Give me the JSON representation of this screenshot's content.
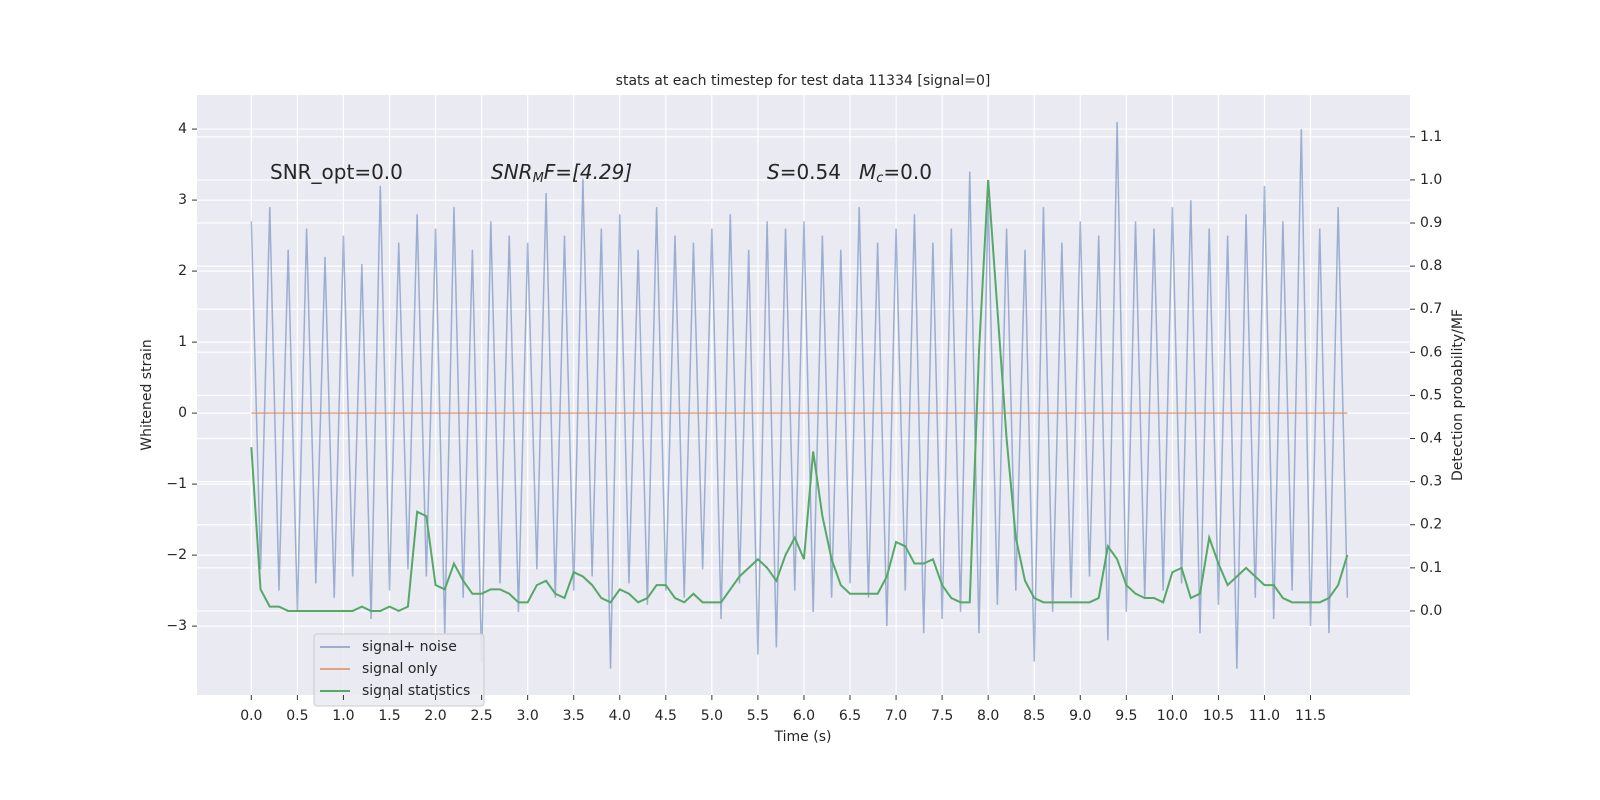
{
  "chart_data": {
    "type": "line",
    "title": "stats at each timestep for test data 11334 [signal=0]",
    "xlabel": "Time (s)",
    "ylabel": "Whitened strain",
    "y2label": "Detection probability/MF",
    "annotations": [
      [
        "SNR_opt=0.0"
      ],
      [
        "SNR",
        "M",
        "F=[4.29]"
      ],
      [
        "S",
        "=0.54",
        "M",
        "c",
        "=0.0"
      ]
    ],
    "x": [
      0,
      0.1,
      0.2,
      0.3,
      0.4,
      0.5,
      0.6,
      0.7,
      0.8,
      0.9,
      1.0,
      1.1,
      1.2,
      1.3,
      1.4,
      1.5,
      1.6,
      1.7,
      1.8,
      1.9,
      2.0,
      2.1,
      2.2,
      2.3,
      2.4,
      2.5,
      2.6,
      2.7,
      2.8,
      2.9,
      3.0,
      3.1,
      3.2,
      3.3,
      3.4,
      3.5,
      3.6,
      3.7,
      3.8,
      3.9,
      4.0,
      4.1,
      4.2,
      4.3,
      4.4,
      4.5,
      4.6,
      4.7,
      4.8,
      4.9,
      5.0,
      5.1,
      5.2,
      5.3,
      5.4,
      5.5,
      5.6,
      5.7,
      5.8,
      5.9,
      6.0,
      6.1,
      6.2,
      6.3,
      6.4,
      6.5,
      6.6,
      6.7,
      6.8,
      6.9,
      7.0,
      7.1,
      7.2,
      7.3,
      7.4,
      7.5,
      7.6,
      7.7,
      7.8,
      7.9,
      8.0,
      8.1,
      8.2,
      8.3,
      8.4,
      8.5,
      8.6,
      8.7,
      8.8,
      8.9,
      9.0,
      9.1,
      9.2,
      9.3,
      9.4,
      9.5,
      9.6,
      9.7,
      9.8,
      9.9,
      10.0,
      10.1,
      10.2,
      10.3,
      10.4,
      10.5,
      10.6,
      10.7,
      10.8,
      10.9,
      11.0,
      11.1,
      11.2,
      11.3,
      11.4,
      11.5,
      11.6,
      11.7,
      11.8,
      11.9
    ],
    "series": [
      {
        "name": "signal+ noise",
        "color": "#4c72b0",
        "opacity": 0.5,
        "values": [
          2.7,
          -2.2,
          2.9,
          -2.5,
          2.3,
          -2.8,
          2.6,
          -2.4,
          2.2,
          -2.6,
          2.5,
          -2.3,
          2.1,
          -2.9,
          3.2,
          -2.5,
          2.4,
          -2.2,
          2.8,
          -2.3,
          2.6,
          -3.1,
          2.9,
          -2.6,
          2.3,
          -3.5,
          2.7,
          -2.4,
          2.5,
          -2.8,
          2.4,
          -2.2,
          3.1,
          -2.6,
          2.5,
          -2.5,
          3.3,
          -2.3,
          2.6,
          -3.6,
          2.8,
          -2.4,
          2.3,
          -2.7,
          2.9,
          -2.5,
          2.5,
          -2.6,
          2.4,
          -2.2,
          2.6,
          -2.9,
          2.8,
          -2.4,
          2.3,
          -3.4,
          2.7,
          -3.3,
          2.6,
          -2.5,
          2.7,
          -2.8,
          2.5,
          -2.6,
          2.3,
          -2.4,
          2.9,
          -2.6,
          2.4,
          -3.0,
          2.6,
          -2.5,
          2.8,
          -3.1,
          2.4,
          -2.9,
          2.6,
          -2.8,
          3.4,
          -3.1,
          3.0,
          -2.7,
          2.6,
          -2.5,
          2.3,
          -3.5,
          2.9,
          -2.8,
          2.4,
          -2.6,
          2.7,
          -2.3,
          2.5,
          -3.2,
          4.1,
          -2.8,
          2.7,
          -2.6,
          2.6,
          -2.5,
          2.9,
          -2.4,
          3.0,
          -3.1,
          2.6,
          -2.7,
          2.5,
          -3.6,
          2.8,
          -2.6,
          3.2,
          -2.9,
          2.7,
          -2.5,
          4.0,
          -3.0,
          2.6,
          -3.1,
          2.9,
          -2.6
        ]
      },
      {
        "name": "signal only",
        "color": "#dd8452",
        "opacity": 0.7,
        "values": [
          0,
          0,
          0,
          0,
          0,
          0,
          0,
          0,
          0,
          0,
          0,
          0,
          0,
          0,
          0,
          0,
          0,
          0,
          0,
          0,
          0,
          0,
          0,
          0,
          0,
          0,
          0,
          0,
          0,
          0,
          0,
          0,
          0,
          0,
          0,
          0,
          0,
          0,
          0,
          0,
          0,
          0,
          0,
          0,
          0,
          0,
          0,
          0,
          0,
          0,
          0,
          0,
          0,
          0,
          0,
          0,
          0,
          0,
          0,
          0,
          0,
          0,
          0,
          0,
          0,
          0,
          0,
          0,
          0,
          0,
          0,
          0,
          0,
          0,
          0,
          0,
          0,
          0,
          0,
          0,
          0,
          0,
          0,
          0,
          0,
          0,
          0,
          0,
          0,
          0,
          0,
          0,
          0,
          0,
          0,
          0,
          0,
          0,
          0,
          0,
          0,
          0,
          0,
          0,
          0,
          0,
          0,
          0,
          0,
          0,
          0,
          0,
          0,
          0,
          0,
          0,
          0,
          0,
          0,
          0
        ]
      },
      {
        "name": "signal statistics",
        "color": "#55a868",
        "opacity": 1,
        "axis": "y2",
        "values": [
          0.38,
          0.05,
          0.01,
          0.01,
          0.0,
          0.0,
          0.0,
          0.0,
          0.0,
          0.0,
          0.0,
          0.0,
          0.01,
          0.0,
          0.0,
          0.01,
          0.0,
          0.01,
          0.23,
          0.22,
          0.06,
          0.05,
          0.11,
          0.07,
          0.04,
          0.04,
          0.05,
          0.05,
          0.04,
          0.02,
          0.02,
          0.06,
          0.07,
          0.04,
          0.03,
          0.09,
          0.08,
          0.06,
          0.03,
          0.02,
          0.05,
          0.04,
          0.02,
          0.03,
          0.06,
          0.06,
          0.03,
          0.02,
          0.04,
          0.02,
          0.02,
          0.02,
          0.05,
          0.08,
          0.1,
          0.12,
          0.1,
          0.07,
          0.13,
          0.17,
          0.12,
          0.37,
          0.22,
          0.12,
          0.06,
          0.04,
          0.04,
          0.04,
          0.04,
          0.08,
          0.16,
          0.15,
          0.11,
          0.11,
          0.12,
          0.06,
          0.03,
          0.02,
          0.02,
          0.6,
          1.0,
          0.7,
          0.4,
          0.17,
          0.07,
          0.03,
          0.02,
          0.02,
          0.02,
          0.02,
          0.02,
          0.02,
          0.03,
          0.15,
          0.12,
          0.06,
          0.04,
          0.03,
          0.03,
          0.02,
          0.09,
          0.1,
          0.03,
          0.04,
          0.17,
          0.11,
          0.06,
          0.08,
          0.1,
          0.08,
          0.06,
          0.06,
          0.03,
          0.02,
          0.02,
          0.02,
          0.02,
          0.03,
          0.06,
          0.13
        ]
      }
    ],
    "xlim": [
      -0.59,
      12.58
    ],
    "ylim": [
      -3.97,
      4.48
    ],
    "y2lim": [
      -0.195,
      1.197
    ],
    "xticks": [
      {
        "value": 0,
        "label": "0.0"
      },
      {
        "value": 0.5,
        "label": "0.5"
      },
      {
        "value": 1,
        "label": "1.0"
      },
      {
        "value": 1.5,
        "label": "1.5"
      },
      {
        "value": 2,
        "label": "2.0"
      },
      {
        "value": 2.5,
        "label": "2.5"
      },
      {
        "value": 3,
        "label": "3.0"
      },
      {
        "value": 3.5,
        "label": "3.5"
      },
      {
        "value": 4,
        "label": "4.0"
      },
      {
        "value": 4.5,
        "label": "4.5"
      },
      {
        "value": 5,
        "label": "5.0"
      },
      {
        "value": 5.5,
        "label": "5.5"
      },
      {
        "value": 6,
        "label": "6.0"
      },
      {
        "value": 6.5,
        "label": "6.5"
      },
      {
        "value": 7,
        "label": "7.0"
      },
      {
        "value": 7.5,
        "label": "7.5"
      },
      {
        "value": 8,
        "label": "8.0"
      },
      {
        "value": 8.5,
        "label": "8.5"
      },
      {
        "value": 9,
        "label": "9.0"
      },
      {
        "value": 9.5,
        "label": "9.5"
      },
      {
        "value": 10,
        "label": "10.0"
      },
      {
        "value": 10.5,
        "label": "10.5"
      },
      {
        "value": 11,
        "label": "11.0"
      },
      {
        "value": 11.5,
        "label": "11.5"
      }
    ],
    "yticks": [
      {
        "value": -3,
        "label": "−3"
      },
      {
        "value": -2,
        "label": "−2"
      },
      {
        "value": -1,
        "label": "−1"
      },
      0,
      1,
      2,
      3,
      4
    ],
    "y2ticks": [
      {
        "value": 0,
        "label": "0.0"
      },
      {
        "value": 0.1,
        "label": "0.1"
      },
      {
        "value": 0.2,
        "label": "0.2"
      },
      {
        "value": 0.3,
        "label": "0.3"
      },
      {
        "value": 0.4,
        "label": "0.4"
      },
      {
        "value": 0.5,
        "label": "0.5"
      },
      {
        "value": 0.6,
        "label": "0.6"
      },
      {
        "value": 0.7,
        "label": "0.7"
      },
      {
        "value": 0.8,
        "label": "0.8"
      },
      {
        "value": 0.9,
        "label": "0.9"
      },
      {
        "value": 1.0,
        "label": "1.0"
      },
      {
        "value": 1.1,
        "label": "1.1"
      }
    ],
    "grid": true,
    "legend": "lower left"
  }
}
